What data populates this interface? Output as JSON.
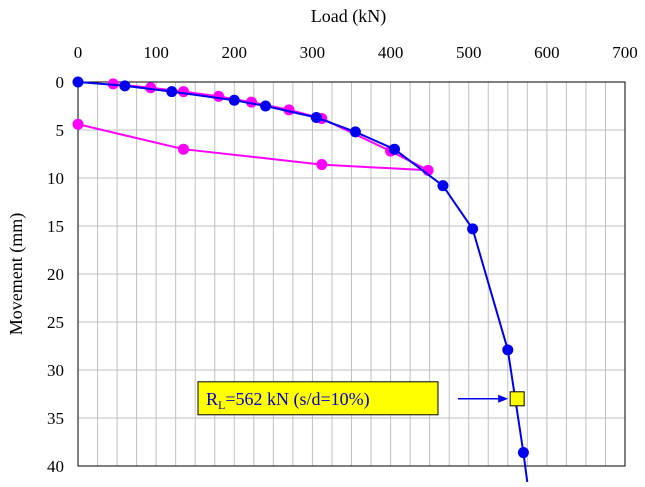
{
  "chart_data": {
    "type": "scatter",
    "title": "",
    "xlabel": "Load (kN)",
    "ylabel": "Movement  (mm)",
    "x_axis_position": "top",
    "y_axis_inverted": true,
    "xlim": [
      0,
      700
    ],
    "ylim": [
      0,
      40
    ],
    "x_ticks": [
      0,
      100,
      200,
      300,
      400,
      500,
      600,
      700
    ],
    "y_ticks": [
      0,
      5,
      10,
      15,
      20,
      25,
      30,
      35,
      40
    ],
    "x_minor_step": 25,
    "grid": true,
    "colors": {
      "blue_series": "#0000ee",
      "magenta_series": "#ff00ff",
      "annotation_fill": "#ffff00",
      "annotation_text": "#0000cc",
      "grid": "#c0c0c0"
    },
    "series": [
      {
        "color": "#0000ee",
        "marker": "circle",
        "points": [
          [
            0,
            0
          ],
          [
            60,
            0.4
          ],
          [
            120,
            1.0
          ],
          [
            200,
            1.9
          ],
          [
            240,
            2.5
          ],
          [
            305,
            3.7
          ],
          [
            355,
            5.2
          ],
          [
            405,
            7.0
          ],
          [
            467,
            10.8
          ],
          [
            505,
            15.3
          ],
          [
            550,
            27.9
          ],
          [
            570,
            38.6
          ]
        ],
        "line_extends_to": [
          575,
          42
        ]
      },
      {
        "color": "#ff00ff",
        "marker": "circle",
        "points": [
          [
            45,
            0.2
          ],
          [
            93,
            0.6
          ],
          [
            135,
            1.0
          ],
          [
            180,
            1.5
          ],
          [
            222,
            2.1
          ],
          [
            270,
            2.9
          ],
          [
            312,
            3.8
          ],
          [
            400,
            7.2
          ],
          [
            448,
            9.2
          ],
          [
            312,
            8.6
          ],
          [
            135,
            7.0
          ],
          [
            0,
            4.4
          ]
        ]
      }
    ],
    "annotation": {
      "text_main": "R",
      "text_sub": "L",
      "text_rest": "=562 kN (s/d=10%)",
      "marker_point": [
        562,
        33.0
      ],
      "marker": "square"
    }
  }
}
